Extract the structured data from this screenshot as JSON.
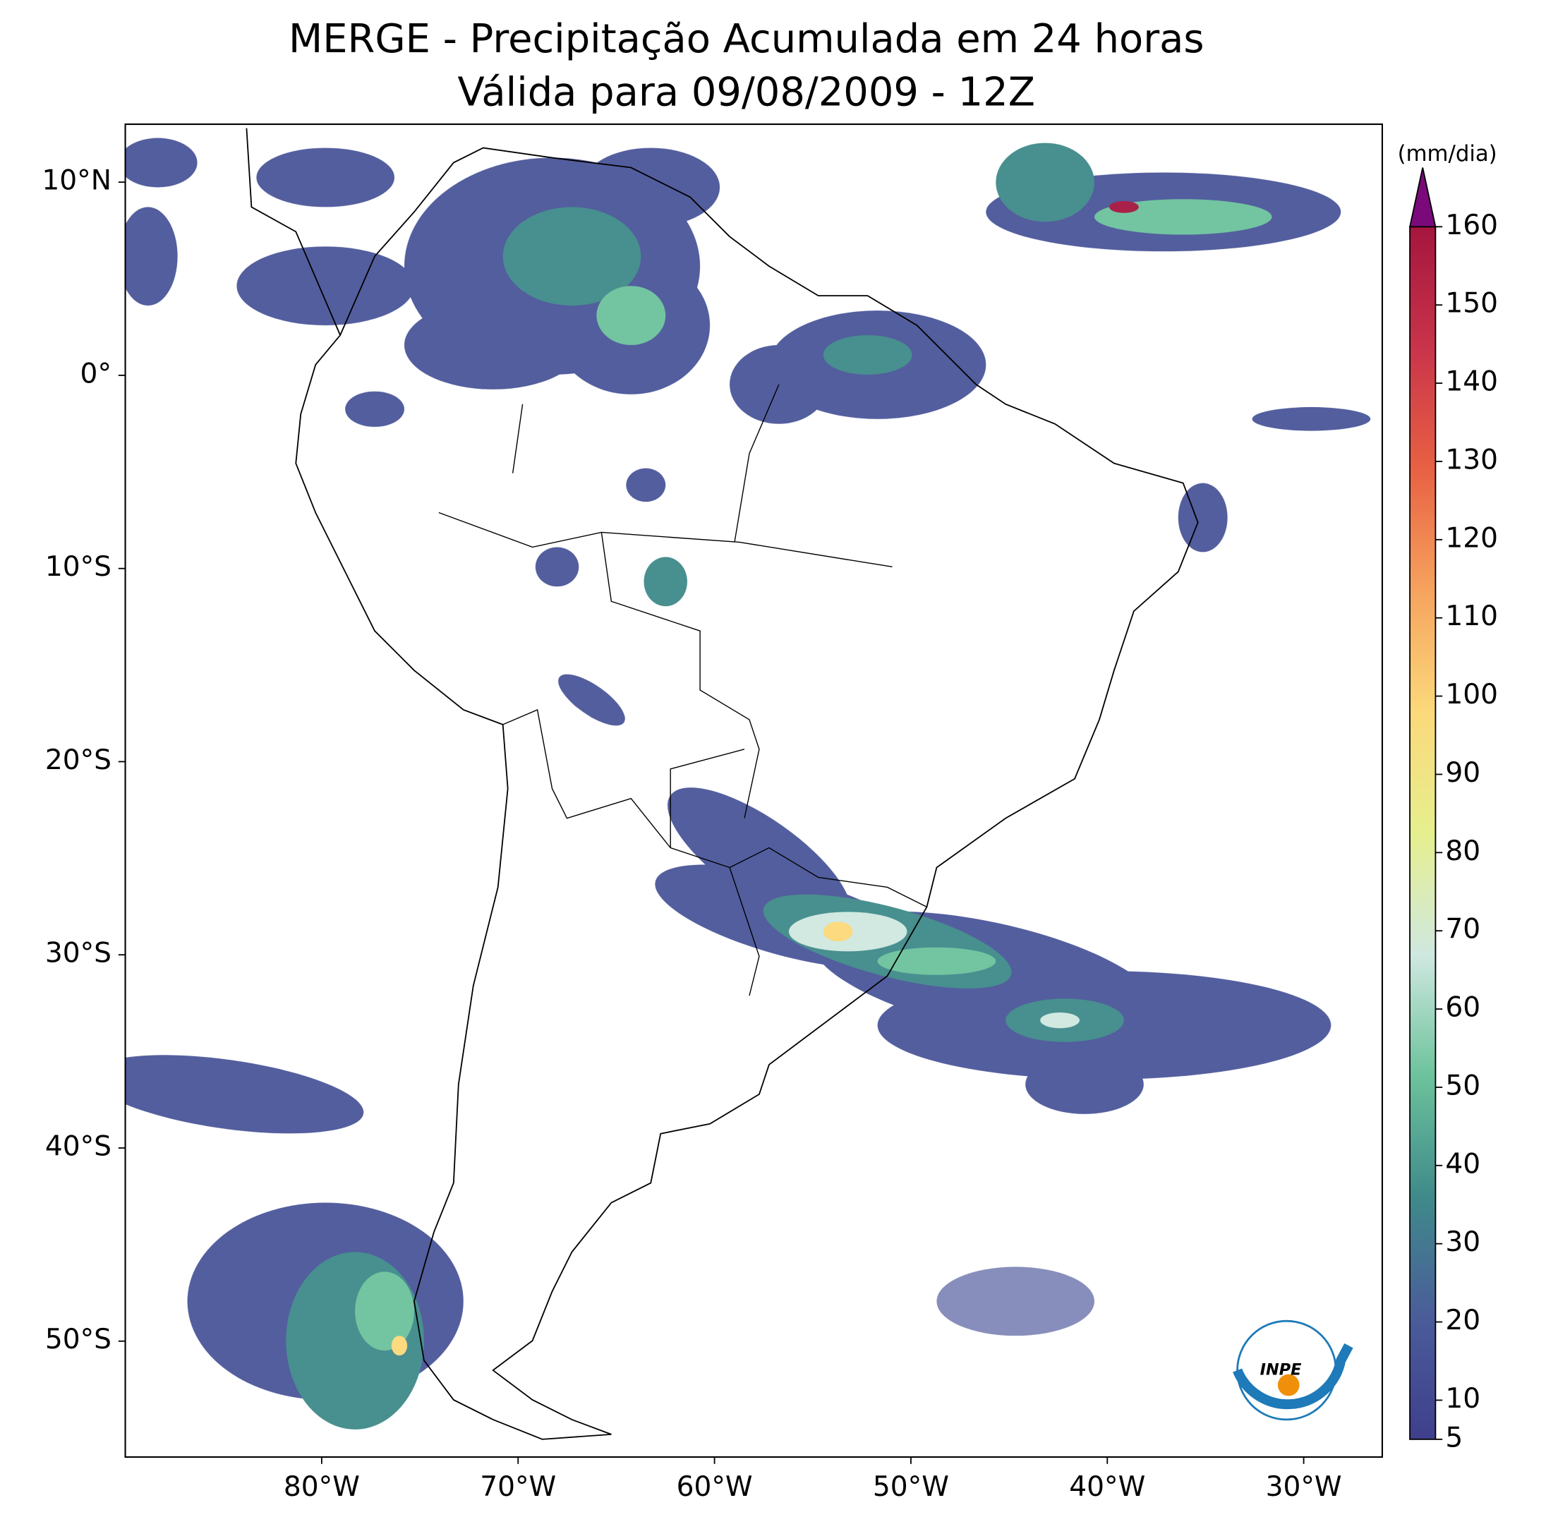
{
  "map": {
    "title": "MERGE - Precipitação Acumulada em 24 horas",
    "subtitle": "Válida para 09/08/2009 - 12Z",
    "lon_lim": [
      -90,
      -26
    ],
    "lat_lim": [
      -56,
      13
    ],
    "lon_ticks": [
      {
        "value": -80,
        "label": "80°W"
      },
      {
        "value": -70,
        "label": "70°W"
      },
      {
        "value": -60,
        "label": "60°W"
      },
      {
        "value": -50,
        "label": "50°W"
      },
      {
        "value": -40,
        "label": "40°W"
      },
      {
        "value": -30,
        "label": "30°W"
      }
    ],
    "lat_ticks": [
      {
        "value": 10,
        "label": "10°N"
      },
      {
        "value": 0,
        "label": "0°"
      },
      {
        "value": -10,
        "label": "10°S"
      },
      {
        "value": -20,
        "label": "20°S"
      },
      {
        "value": -30,
        "label": "30°S"
      },
      {
        "value": -40,
        "label": "40°S"
      },
      {
        "value": -50,
        "label": "50°S"
      }
    ],
    "colorbar": {
      "label": "(mm/dia)",
      "lim": [
        5,
        160
      ],
      "ticks": [
        5,
        10,
        20,
        30,
        40,
        50,
        60,
        70,
        80,
        90,
        100,
        110,
        120,
        130,
        140,
        150,
        160
      ],
      "colors": [
        "#3f3f8c",
        "#4a5c9a",
        "#3f8a8a",
        "#6cc29c",
        "#cfe8e0",
        "#e6ef8e",
        "#fbd97a",
        "#f6a35e",
        "#e86143",
        "#c9344a",
        "#a5163f"
      ],
      "extend_color": "#7a0a7a"
    },
    "logo": "INPE"
  }
}
